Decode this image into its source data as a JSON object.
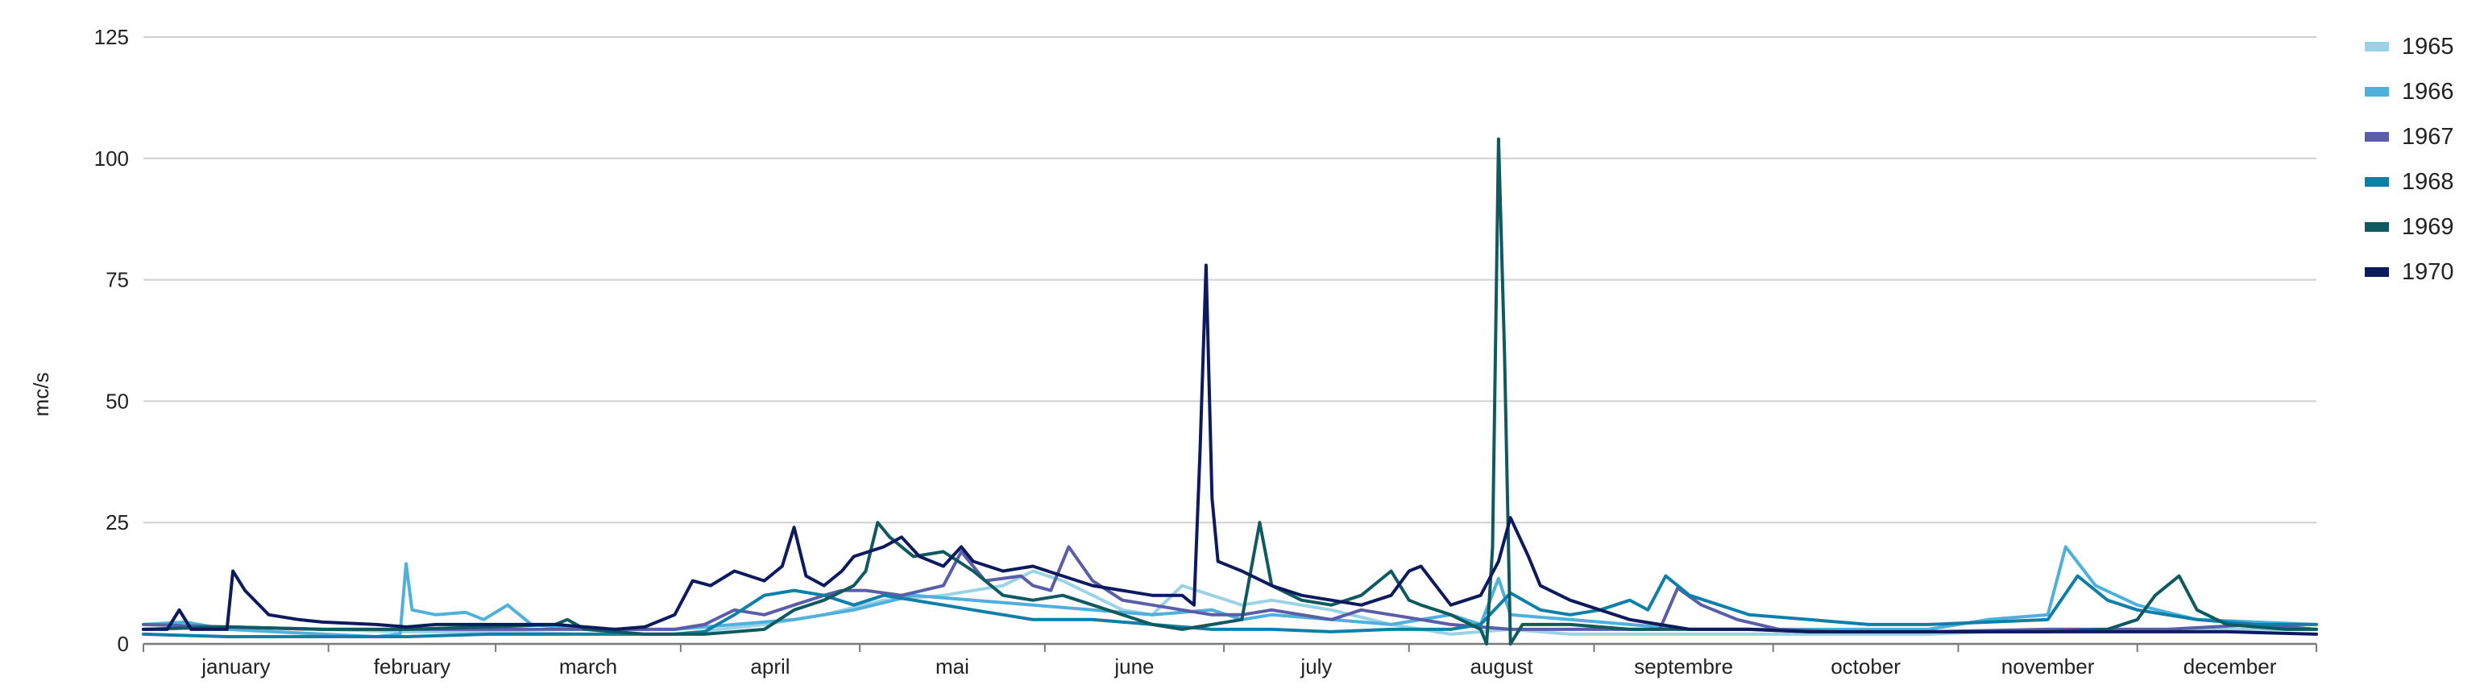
{
  "chart_data": {
    "type": "line",
    "title": "",
    "xlabel": "",
    "ylabel": "mc/s",
    "ylim": [
      0,
      125
    ],
    "yticks": [
      0,
      25,
      50,
      75,
      100,
      125
    ],
    "grid": true,
    "legend_position": "right",
    "x_day_range": [
      1,
      365
    ],
    "month_labels": [
      "january",
      "february",
      "march",
      "april",
      "mai",
      "june",
      "july",
      "august",
      "septembre",
      "october",
      "november",
      "december"
    ],
    "series": [
      {
        "name": "1965",
        "color": "#9ad3e6",
        "points": [
          [
            1,
            3
          ],
          [
            15,
            3.5
          ],
          [
            31,
            3
          ],
          [
            45,
            2.5
          ],
          [
            59,
            2.5
          ],
          [
            75,
            2
          ],
          [
            90,
            2
          ],
          [
            105,
            4
          ],
          [
            115,
            6
          ],
          [
            125,
            9
          ],
          [
            135,
            10
          ],
          [
            145,
            12
          ],
          [
            150,
            15
          ],
          [
            155,
            13
          ],
          [
            160,
            10
          ],
          [
            165,
            7
          ],
          [
            170,
            6
          ],
          [
            175,
            12
          ],
          [
            180,
            10
          ],
          [
            185,
            8
          ],
          [
            190,
            9
          ],
          [
            200,
            7
          ],
          [
            210,
            4
          ],
          [
            220,
            2
          ],
          [
            230,
            3
          ],
          [
            240,
            2
          ],
          [
            250,
            2
          ],
          [
            260,
            2
          ],
          [
            270,
            2
          ],
          [
            280,
            2
          ],
          [
            290,
            2
          ],
          [
            300,
            2
          ],
          [
            310,
            2.5
          ],
          [
            320,
            3
          ],
          [
            330,
            3
          ],
          [
            340,
            3
          ],
          [
            350,
            3
          ],
          [
            365,
            3
          ]
        ]
      },
      {
        "name": "1966",
        "color": "#4fb0dc",
        "points": [
          [
            1,
            4
          ],
          [
            8,
            4.5
          ],
          [
            15,
            3
          ],
          [
            31,
            2
          ],
          [
            40,
            1.5
          ],
          [
            44,
            2
          ],
          [
            45,
            16.5
          ],
          [
            46,
            7
          ],
          [
            50,
            6
          ],
          [
            55,
            6.5
          ],
          [
            58,
            5
          ],
          [
            62,
            8
          ],
          [
            66,
            4
          ],
          [
            75,
            3
          ],
          [
            90,
            3
          ],
          [
            100,
            4
          ],
          [
            110,
            5
          ],
          [
            120,
            7
          ],
          [
            130,
            10
          ],
          [
            140,
            9
          ],
          [
            150,
            8
          ],
          [
            160,
            7
          ],
          [
            170,
            6
          ],
          [
            180,
            7
          ],
          [
            185,
            5
          ],
          [
            190,
            6
          ],
          [
            200,
            5
          ],
          [
            210,
            4
          ],
          [
            220,
            6
          ],
          [
            225,
            4
          ],
          [
            228,
            13.5
          ],
          [
            230,
            6
          ],
          [
            240,
            5
          ],
          [
            250,
            4
          ],
          [
            260,
            3
          ],
          [
            270,
            3
          ],
          [
            280,
            3
          ],
          [
            290,
            3
          ],
          [
            300,
            3
          ],
          [
            310,
            5
          ],
          [
            320,
            6
          ],
          [
            323,
            20
          ],
          [
            328,
            12
          ],
          [
            335,
            8
          ],
          [
            345,
            5
          ],
          [
            365,
            4
          ]
        ]
      },
      {
        "name": "1967",
        "color": "#5a5ea8",
        "points": [
          [
            1,
            4
          ],
          [
            15,
            3.5
          ],
          [
            31,
            3
          ],
          [
            45,
            3
          ],
          [
            59,
            3
          ],
          [
            75,
            3
          ],
          [
            90,
            3
          ],
          [
            95,
            4
          ],
          [
            100,
            7
          ],
          [
            105,
            6
          ],
          [
            110,
            8
          ],
          [
            115,
            10
          ],
          [
            118,
            11
          ],
          [
            122,
            11
          ],
          [
            128,
            10
          ],
          [
            135,
            12
          ],
          [
            138,
            19
          ],
          [
            142,
            13
          ],
          [
            148,
            14
          ],
          [
            150,
            12
          ],
          [
            153,
            11
          ],
          [
            156,
            20
          ],
          [
            160,
            13
          ],
          [
            165,
            9
          ],
          [
            170,
            8
          ],
          [
            175,
            7
          ],
          [
            180,
            6
          ],
          [
            185,
            6
          ],
          [
            190,
            7
          ],
          [
            195,
            6
          ],
          [
            200,
            5
          ],
          [
            205,
            7
          ],
          [
            210,
            6
          ],
          [
            215,
            5
          ],
          [
            220,
            4
          ],
          [
            230,
            3
          ],
          [
            240,
            3
          ],
          [
            250,
            3
          ],
          [
            255,
            3
          ],
          [
            258,
            11.5
          ],
          [
            262,
            8
          ],
          [
            268,
            5
          ],
          [
            275,
            3
          ],
          [
            285,
            2.5
          ],
          [
            300,
            2.5
          ],
          [
            320,
            3
          ],
          [
            340,
            3
          ],
          [
            355,
            4
          ],
          [
            365,
            3
          ]
        ]
      },
      {
        "name": "1968",
        "color": "#0e7fa8",
        "points": [
          [
            1,
            2
          ],
          [
            15,
            1.5
          ],
          [
            31,
            1.5
          ],
          [
            45,
            1.5
          ],
          [
            59,
            2
          ],
          [
            75,
            2
          ],
          [
            90,
            2
          ],
          [
            95,
            2.5
          ],
          [
            100,
            6
          ],
          [
            105,
            10
          ],
          [
            110,
            11
          ],
          [
            115,
            10
          ],
          [
            120,
            8
          ],
          [
            125,
            10
          ],
          [
            130,
            9
          ],
          [
            135,
            8
          ],
          [
            140,
            7
          ],
          [
            150,
            5
          ],
          [
            160,
            5
          ],
          [
            170,
            4
          ],
          [
            180,
            3
          ],
          [
            190,
            3
          ],
          [
            200,
            2.5
          ],
          [
            210,
            3
          ],
          [
            220,
            3
          ],
          [
            225,
            4
          ],
          [
            230,
            10.5
          ],
          [
            235,
            7
          ],
          [
            240,
            6
          ],
          [
            245,
            7
          ],
          [
            250,
            9
          ],
          [
            253,
            7
          ],
          [
            256,
            14
          ],
          [
            260,
            10
          ],
          [
            265,
            8
          ],
          [
            270,
            6
          ],
          [
            280,
            5
          ],
          [
            290,
            4
          ],
          [
            300,
            4
          ],
          [
            310,
            4.5
          ],
          [
            320,
            5
          ],
          [
            325,
            14
          ],
          [
            330,
            9
          ],
          [
            335,
            7
          ],
          [
            345,
            5
          ],
          [
            355,
            4
          ],
          [
            365,
            4
          ]
        ]
      },
      {
        "name": "1969",
        "color": "#0e5a60",
        "points": [
          [
            1,
            3
          ],
          [
            15,
            3.5
          ],
          [
            31,
            3
          ],
          [
            45,
            3
          ],
          [
            59,
            3.5
          ],
          [
            70,
            4
          ],
          [
            72,
            5
          ],
          [
            75,
            3
          ],
          [
            85,
            2
          ],
          [
            95,
            2
          ],
          [
            105,
            3
          ],
          [
            110,
            7
          ],
          [
            115,
            9
          ],
          [
            120,
            12
          ],
          [
            122,
            15
          ],
          [
            124,
            25
          ],
          [
            126,
            22
          ],
          [
            130,
            18
          ],
          [
            135,
            19
          ],
          [
            140,
            15
          ],
          [
            145,
            10
          ],
          [
            150,
            9
          ],
          [
            155,
            10
          ],
          [
            160,
            8
          ],
          [
            165,
            6
          ],
          [
            170,
            4
          ],
          [
            175,
            3
          ],
          [
            180,
            4
          ],
          [
            185,
            5
          ],
          [
            188,
            25
          ],
          [
            190,
            12
          ],
          [
            195,
            9
          ],
          [
            200,
            8
          ],
          [
            205,
            10
          ],
          [
            210,
            15
          ],
          [
            213,
            9
          ],
          [
            215,
            8
          ],
          [
            220,
            6
          ],
          [
            225,
            3
          ],
          [
            226,
            0
          ],
          [
            227,
            20
          ],
          [
            228,
            104
          ],
          [
            229,
            60
          ],
          [
            230,
            0
          ],
          [
            232,
            4
          ],
          [
            240,
            4
          ],
          [
            250,
            3
          ],
          [
            260,
            3
          ],
          [
            270,
            3
          ],
          [
            280,
            2.5
          ],
          [
            290,
            2.5
          ],
          [
            300,
            2.5
          ],
          [
            310,
            2.5
          ],
          [
            320,
            2.5
          ],
          [
            330,
            3
          ],
          [
            335,
            5
          ],
          [
            338,
            10
          ],
          [
            342,
            14
          ],
          [
            345,
            7
          ],
          [
            350,
            4
          ],
          [
            360,
            3
          ],
          [
            365,
            3
          ]
        ]
      },
      {
        "name": "1970",
        "color": "#0d1a5e",
        "points": [
          [
            1,
            3
          ],
          [
            5,
            3
          ],
          [
            7,
            7
          ],
          [
            9,
            3
          ],
          [
            15,
            3
          ],
          [
            16,
            15
          ],
          [
            18,
            11
          ],
          [
            22,
            6
          ],
          [
            27,
            5
          ],
          [
            31,
            4.5
          ],
          [
            40,
            4
          ],
          [
            45,
            3.5
          ],
          [
            50,
            4
          ],
          [
            59,
            4
          ],
          [
            70,
            4
          ],
          [
            80,
            3
          ],
          [
            85,
            3.5
          ],
          [
            90,
            6
          ],
          [
            93,
            13
          ],
          [
            96,
            12
          ],
          [
            100,
            15
          ],
          [
            105,
            13
          ],
          [
            108,
            16
          ],
          [
            110,
            24
          ],
          [
            112,
            14
          ],
          [
            115,
            12
          ],
          [
            118,
            15
          ],
          [
            120,
            18
          ],
          [
            125,
            20
          ],
          [
            128,
            22
          ],
          [
            131,
            18
          ],
          [
            135,
            16
          ],
          [
            138,
            20
          ],
          [
            140,
            17
          ],
          [
            145,
            15
          ],
          [
            150,
            16
          ],
          [
            155,
            14
          ],
          [
            160,
            12
          ],
          [
            165,
            11
          ],
          [
            170,
            10
          ],
          [
            175,
            10
          ],
          [
            177,
            8
          ],
          [
            178,
            40
          ],
          [
            179,
            78
          ],
          [
            180,
            30
          ],
          [
            181,
            17
          ],
          [
            185,
            15
          ],
          [
            190,
            12
          ],
          [
            195,
            10
          ],
          [
            200,
            9
          ],
          [
            205,
            8
          ],
          [
            210,
            10
          ],
          [
            213,
            15
          ],
          [
            215,
            16
          ],
          [
            220,
            8
          ],
          [
            225,
            10
          ],
          [
            228,
            17
          ],
          [
            230,
            26
          ],
          [
            233,
            18
          ],
          [
            235,
            12
          ],
          [
            240,
            9
          ],
          [
            245,
            7
          ],
          [
            250,
            5
          ],
          [
            255,
            4
          ],
          [
            260,
            3
          ],
          [
            270,
            3
          ],
          [
            280,
            2.5
          ],
          [
            290,
            2.5
          ],
          [
            300,
            2.5
          ],
          [
            310,
            2.5
          ],
          [
            320,
            2.5
          ],
          [
            330,
            2.5
          ],
          [
            340,
            2.5
          ],
          [
            350,
            2.5
          ],
          [
            365,
            2
          ]
        ]
      }
    ]
  }
}
